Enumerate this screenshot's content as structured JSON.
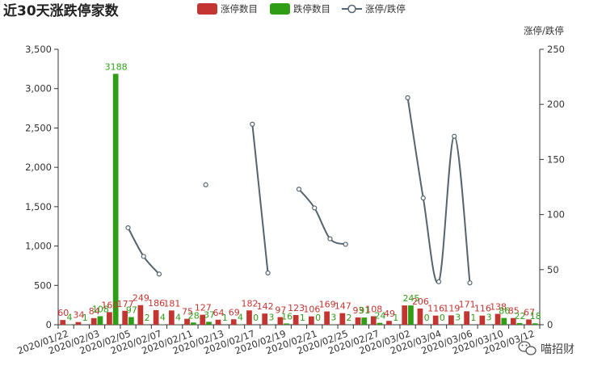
{
  "colors": {
    "up": "#c23531",
    "down": "#2f9e16",
    "ratio": "#546570"
  },
  "watermark": {
    "icon": "wechat-icon",
    "text": "喵招财"
  },
  "chart_data": {
    "type": "bar",
    "title": "近30天涨跌停家数",
    "legend": {
      "placement": "top-center",
      "items": [
        "涨停数目",
        "跌停数目",
        "涨停/跌停"
      ]
    },
    "categories": [
      "2020/01/22",
      "2020/01/23",
      "2020/02/03",
      "2020/02/04",
      "2020/02/05",
      "2020/02/06",
      "2020/02/07",
      "2020/02/10",
      "2020/02/11",
      "2020/02/12",
      "2020/02/13",
      "2020/02/14",
      "2020/02/17",
      "2020/02/18",
      "2020/02/19",
      "2020/02/20",
      "2020/02/21",
      "2020/02/24",
      "2020/02/25",
      "2020/02/26",
      "2020/02/27",
      "2020/02/28",
      "2020/03/02",
      "2020/03/03",
      "2020/03/04",
      "2020/03/05",
      "2020/03/06",
      "2020/03/09",
      "2020/03/10",
      "2020/03/11",
      "2020/03/12"
    ],
    "x_tick_labels": [
      "2020/01/22",
      "2020/02/03",
      "2020/02/05",
      "2020/02/07",
      "2020/02/11",
      "2020/02/13",
      "2020/02/17",
      "2020/02/19",
      "2020/02/21",
      "2020/02/25",
      "2020/02/27",
      "2020/03/02",
      "2020/03/04",
      "2020/03/06",
      "2020/03/10",
      "2020/03/12"
    ],
    "series": [
      {
        "name": "涨停数目",
        "axis": "left",
        "values": [
          60,
          34,
          84,
          160,
          177,
          249,
          186,
          181,
          75,
          127,
          64,
          69,
          182,
          142,
          97,
          123,
          106,
          169,
          147,
          93,
          108,
          49,
          245,
          206,
          116,
          119,
          171,
          116,
          138,
          85,
          67
        ]
      },
      {
        "name": "跌停数目",
        "axis": "left",
        "values": [
          4,
          1,
          108,
          3188,
          97,
          2,
          4,
          4,
          28,
          37,
          1,
          4,
          0,
          3,
          16,
          1,
          0,
          3,
          2,
          91,
          24,
          1,
          245,
          0,
          0,
          3,
          1,
          3,
          86,
          22,
          18
        ]
      },
      {
        "name": "涨停/跌停",
        "type": "line",
        "axis": "right",
        "values": [
          null,
          null,
          null,
          null,
          88,
          62,
          46,
          null,
          null,
          127,
          null,
          null,
          182,
          47,
          null,
          123,
          106,
          78,
          73,
          null,
          null,
          null,
          206,
          115,
          39,
          171,
          38,
          null,
          null,
          null,
          null
        ]
      }
    ],
    "bar_labels": {
      "up": [
        "60",
        "34",
        "84",
        "160",
        "177",
        "249",
        "186",
        "181",
        "75",
        "127",
        "64",
        "69",
        "182",
        "142",
        "97",
        "123",
        "106",
        "169",
        "147",
        "93",
        "108",
        "49",
        "",
        "206",
        "116",
        "119",
        "171",
        "116",
        "138",
        "85",
        "67"
      ],
      "down": [
        "4",
        "1",
        "108",
        "3188",
        "97",
        "2",
        "4",
        "4",
        "28",
        "37",
        "1",
        "4",
        "0",
        "3",
        "16",
        "1",
        "0",
        "3",
        "2",
        "91",
        "24",
        "1",
        "245",
        "0",
        "0",
        "3",
        "1",
        "3",
        "86",
        "22",
        "18"
      ]
    },
    "y_left": {
      "ticks": [
        "0",
        "500",
        "1,000",
        "1,500",
        "2,000",
        "2,500",
        "3,000",
        "3,500"
      ],
      "range": [
        0,
        3500
      ]
    },
    "y_right": {
      "label": "涨停/跌停",
      "ticks": [
        "0",
        "50",
        "100",
        "150",
        "200",
        "250"
      ],
      "range": [
        0,
        250
      ]
    },
    "grid": false
  }
}
